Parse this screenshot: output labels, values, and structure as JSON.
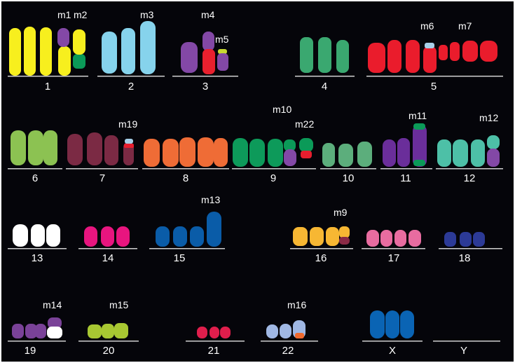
{
  "colors": {
    "background": "#05050a",
    "frame": "#ffffff",
    "baseline": "#d0d0d0",
    "text": "#ffffff",
    "chr1": "#f7ef1e",
    "chr2": "#86d3ec",
    "chr3": "#e8202e",
    "chr4": "#3aa870",
    "chr5": "#ea1c2c",
    "chr6": "#8cc252",
    "chr7": "#7b2a44",
    "chr8": "#ef6c36",
    "chr9": "#0d9a5a",
    "chr10": "#5cae7c",
    "chr11": "#6a2e9a",
    "chr12": "#4dc0a7",
    "chr13": "#ffffff",
    "chr14": "#e8157f",
    "chr15": "#0a5ca8",
    "chr16": "#f7b733",
    "chr17": "#e86ca0",
    "chr18": "#2c3a96",
    "chr19": "#7a4298",
    "chr20": "#a8c832",
    "chr21": "#e01e4c",
    "chr22": "#a0b8e4",
    "chrX": "#0a64b4",
    "purple": "#8348a6",
    "green": "#0b9a58",
    "lime": "#c8d832",
    "lightblue": "#a6cfe8",
    "red": "#e61e2e",
    "maroon": "#8a2a46",
    "orange": "#f06a2e"
  },
  "chromosome_labels": [
    "1",
    "2",
    "3",
    "4",
    "5",
    "6",
    "7",
    "8",
    "9",
    "10",
    "11",
    "12",
    "13",
    "14",
    "15",
    "16",
    "17",
    "18",
    "19",
    "20",
    "21",
    "22",
    "X",
    "Y"
  ],
  "marker_labels": {
    "m1": "m1",
    "m2": "m2",
    "m3": "m3",
    "m4": "m4",
    "m5": "m5",
    "m6": "m6",
    "m7": "m7",
    "m9": "m9",
    "m10": "m10",
    "m11": "m11",
    "m12": "m12",
    "m13": "m13",
    "m14": "m14",
    "m15": "m15",
    "m16": "m16",
    "m19": "m19",
    "m22": "m22"
  }
}
